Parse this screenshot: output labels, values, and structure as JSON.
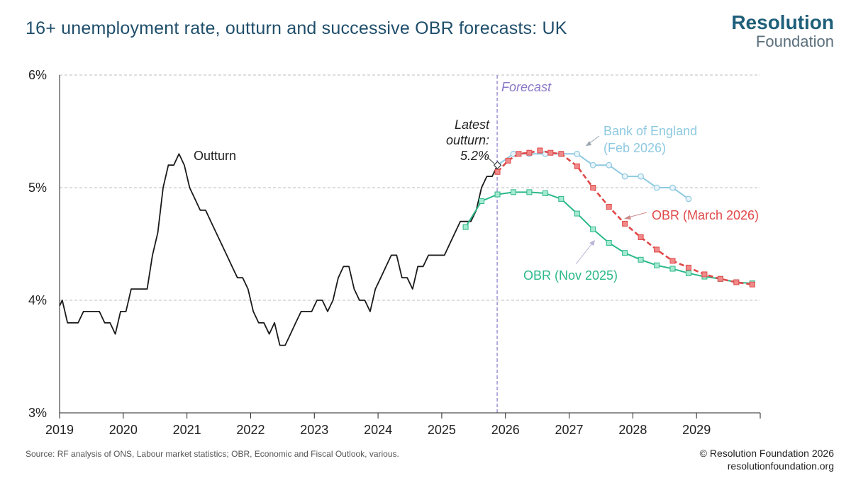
{
  "title": "16+ unemployment rate, outturn and successive OBR forecasts: UK",
  "logo": {
    "line1": "Resolution",
    "line2": "Foundation"
  },
  "source": "Source: RF analysis of ONS, Labour market statistics; OBR, Economic and Fiscal Outlook, various.",
  "copyright": {
    "line1": "© Resolution Foundation 2026",
    "line2": "resolutionfoundation.org"
  },
  "colors": {
    "outturn": "#1a1a1a",
    "obr_nov": "#2bb88a",
    "obr_mar": "#e04848",
    "boe": "#8ec9e2",
    "forecast_line": "#8a78c8",
    "grid": "#bdbdbd"
  },
  "chart_data": {
    "type": "line",
    "title": "16+ unemployment rate, outturn and successive OBR forecasts: UK",
    "xlabel": "",
    "ylabel": "",
    "xlim": [
      2019.0,
      2030.0
    ],
    "ylim": [
      3,
      6
    ],
    "y_ticks": [
      {
        "value": 3,
        "label": "3%"
      },
      {
        "value": 4,
        "label": "4%"
      },
      {
        "value": 5,
        "label": "5%"
      },
      {
        "value": 6,
        "label": "6%"
      }
    ],
    "x_ticks": [
      {
        "value": 2019,
        "label": "2019"
      },
      {
        "value": 2020,
        "label": "2020"
      },
      {
        "value": 2021,
        "label": "2021"
      },
      {
        "value": 2022,
        "label": "2022"
      },
      {
        "value": 2023,
        "label": "2023"
      },
      {
        "value": 2024,
        "label": "2024"
      },
      {
        "value": 2025,
        "label": "2025"
      },
      {
        "value": 2026,
        "label": "2026"
      },
      {
        "value": 2027,
        "label": "2027"
      },
      {
        "value": 2028,
        "label": "2028"
      },
      {
        "value": 2029,
        "label": "2029"
      }
    ],
    "grid": true,
    "forecast_start": 2025.87,
    "annotations": {
      "forecast": "Forecast",
      "outturn": "Outturn",
      "latest": [
        "Latest",
        "outturn:",
        "5.2%"
      ],
      "boe": [
        "Bank of England",
        "(Feb 2026)"
      ],
      "obr_mar": "OBR (March 2026)",
      "obr_nov": "OBR (Nov 2025)"
    },
    "series": [
      {
        "name": "Outturn",
        "style": "line",
        "x": [
          2019.0,
          2019.042,
          2019.125,
          2019.208,
          2019.292,
          2019.375,
          2019.458,
          2019.542,
          2019.625,
          2019.708,
          2019.792,
          2019.875,
          2019.958,
          2020.042,
          2020.125,
          2020.208,
          2020.292,
          2020.375,
          2020.458,
          2020.542,
          2020.625,
          2020.708,
          2020.792,
          2020.875,
          2020.958,
          2021.042,
          2021.125,
          2021.208,
          2021.292,
          2021.375,
          2021.458,
          2021.542,
          2021.625,
          2021.708,
          2021.792,
          2021.875,
          2021.958,
          2022.042,
          2022.125,
          2022.208,
          2022.292,
          2022.375,
          2022.458,
          2022.542,
          2022.625,
          2022.708,
          2022.792,
          2022.875,
          2022.958,
          2023.042,
          2023.125,
          2023.208,
          2023.292,
          2023.375,
          2023.458,
          2023.542,
          2023.625,
          2023.708,
          2023.792,
          2023.875,
          2023.958,
          2024.042,
          2024.125,
          2024.208,
          2024.292,
          2024.375,
          2024.458,
          2024.542,
          2024.625,
          2024.708,
          2024.792,
          2024.875,
          2024.958,
          2025.042,
          2025.125,
          2025.208,
          2025.292,
          2025.375,
          2025.458,
          2025.542,
          2025.625,
          2025.708,
          2025.792,
          2025.875
        ],
        "y": [
          3.95,
          4.0,
          3.8,
          3.8,
          3.8,
          3.9,
          3.9,
          3.9,
          3.9,
          3.8,
          3.8,
          3.7,
          3.9,
          3.9,
          4.1,
          4.1,
          4.1,
          4.1,
          4.4,
          4.6,
          5.0,
          5.2,
          5.2,
          5.3,
          5.2,
          5.0,
          4.9,
          4.8,
          4.8,
          4.7,
          4.6,
          4.5,
          4.4,
          4.3,
          4.2,
          4.2,
          4.1,
          3.9,
          3.8,
          3.8,
          3.7,
          3.8,
          3.6,
          3.6,
          3.7,
          3.8,
          3.9,
          3.9,
          3.9,
          4.0,
          4.0,
          3.9,
          4.0,
          4.2,
          4.3,
          4.3,
          4.1,
          4.0,
          4.0,
          3.9,
          4.1,
          4.2,
          4.3,
          4.4,
          4.4,
          4.2,
          4.2,
          4.1,
          4.3,
          4.3,
          4.4,
          4.4,
          4.4,
          4.4,
          4.5,
          4.6,
          4.7,
          4.7,
          4.7,
          4.8,
          5.0,
          5.1,
          5.1,
          5.2
        ]
      },
      {
        "name": "OBR (Nov 2025)",
        "style": "solid-markers",
        "x": [
          2025.375,
          2025.625,
          2025.875,
          2026.125,
          2026.375,
          2026.625,
          2026.875,
          2027.125,
          2027.375,
          2027.625,
          2027.875,
          2028.125,
          2028.375,
          2028.625,
          2028.875,
          2029.125,
          2029.375,
          2029.625,
          2029.875
        ],
        "y": [
          4.65,
          4.88,
          4.94,
          4.96,
          4.96,
          4.95,
          4.9,
          4.77,
          4.63,
          4.51,
          4.42,
          4.36,
          4.31,
          4.28,
          4.24,
          4.21,
          4.19,
          4.16,
          4.15
        ]
      },
      {
        "name": "OBR (March 2026)",
        "style": "dashed-markers",
        "x": [
          2025.875,
          2026.042,
          2026.208,
          2026.375,
          2026.542,
          2026.708,
          2026.875,
          2027.125,
          2027.375,
          2027.625,
          2027.875,
          2028.125,
          2028.375,
          2028.625,
          2028.875,
          2029.125,
          2029.375,
          2029.625,
          2029.875
        ],
        "y": [
          5.14,
          5.24,
          5.3,
          5.31,
          5.33,
          5.31,
          5.3,
          5.19,
          5.0,
          4.83,
          4.68,
          4.56,
          4.45,
          4.35,
          4.29,
          4.23,
          4.19,
          4.16,
          4.14
        ]
      },
      {
        "name": "Bank of England (Feb 2026)",
        "style": "solid-markers",
        "x": [
          2025.875,
          2026.125,
          2026.375,
          2026.625,
          2026.875,
          2027.125,
          2027.375,
          2027.625,
          2027.875,
          2028.125,
          2028.375,
          2028.625,
          2028.875
        ],
        "y": [
          5.2,
          5.3,
          5.3,
          5.3,
          5.3,
          5.3,
          5.2,
          5.2,
          5.1,
          5.1,
          5.0,
          5.0,
          4.9
        ]
      }
    ]
  }
}
